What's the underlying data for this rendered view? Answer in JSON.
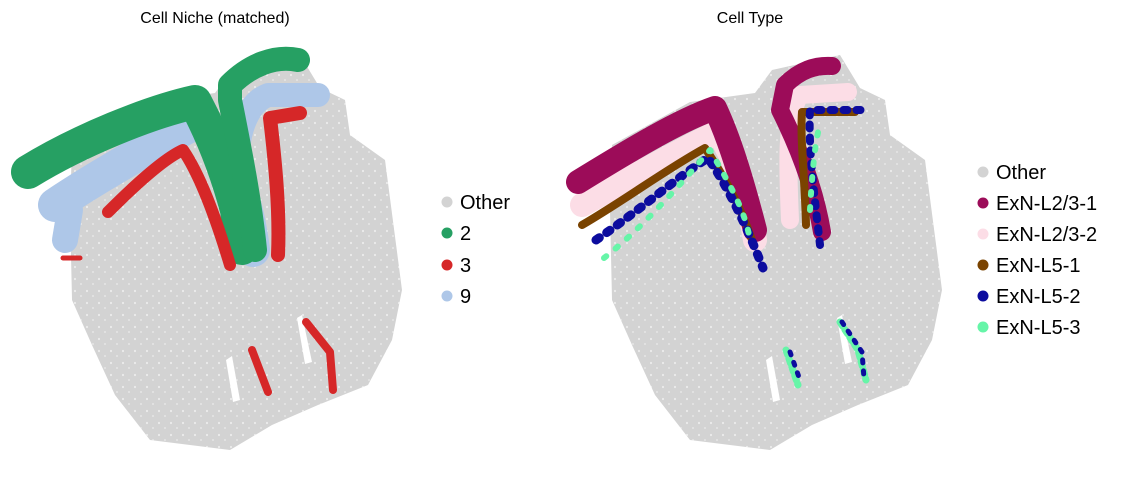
{
  "chart_data": [
    {
      "type": "scatter",
      "title": "Cell Niche (matched)",
      "xlabel": "",
      "ylabel": "",
      "axes_visible": false,
      "grid": false,
      "legend_placement": "right",
      "legend": [
        {
          "label": "Other",
          "color": "#d3d3d3"
        },
        {
          "label": "2",
          "color": "#26a063"
        },
        {
          "label": "3",
          "color": "#d62728"
        },
        {
          "label": "9",
          "color": "#aec7e8"
        }
      ]
    },
    {
      "type": "scatter",
      "title": "Cell Type",
      "xlabel": "",
      "ylabel": "",
      "axes_visible": false,
      "grid": false,
      "legend_placement": "right",
      "legend": [
        {
          "label": "Other",
          "color": "#d3d3d3"
        },
        {
          "label": "ExN-L2/3-1",
          "color": "#9c0c59"
        },
        {
          "label": "ExN-L2/3-2",
          "color": "#fcdde6"
        },
        {
          "label": "ExN-L5-1",
          "color": "#7a4300"
        },
        {
          "label": "ExN-L5-2",
          "color": "#0c0c9e"
        },
        {
          "label": "ExN-L5-3",
          "color": "#66f5a8"
        }
      ]
    }
  ]
}
